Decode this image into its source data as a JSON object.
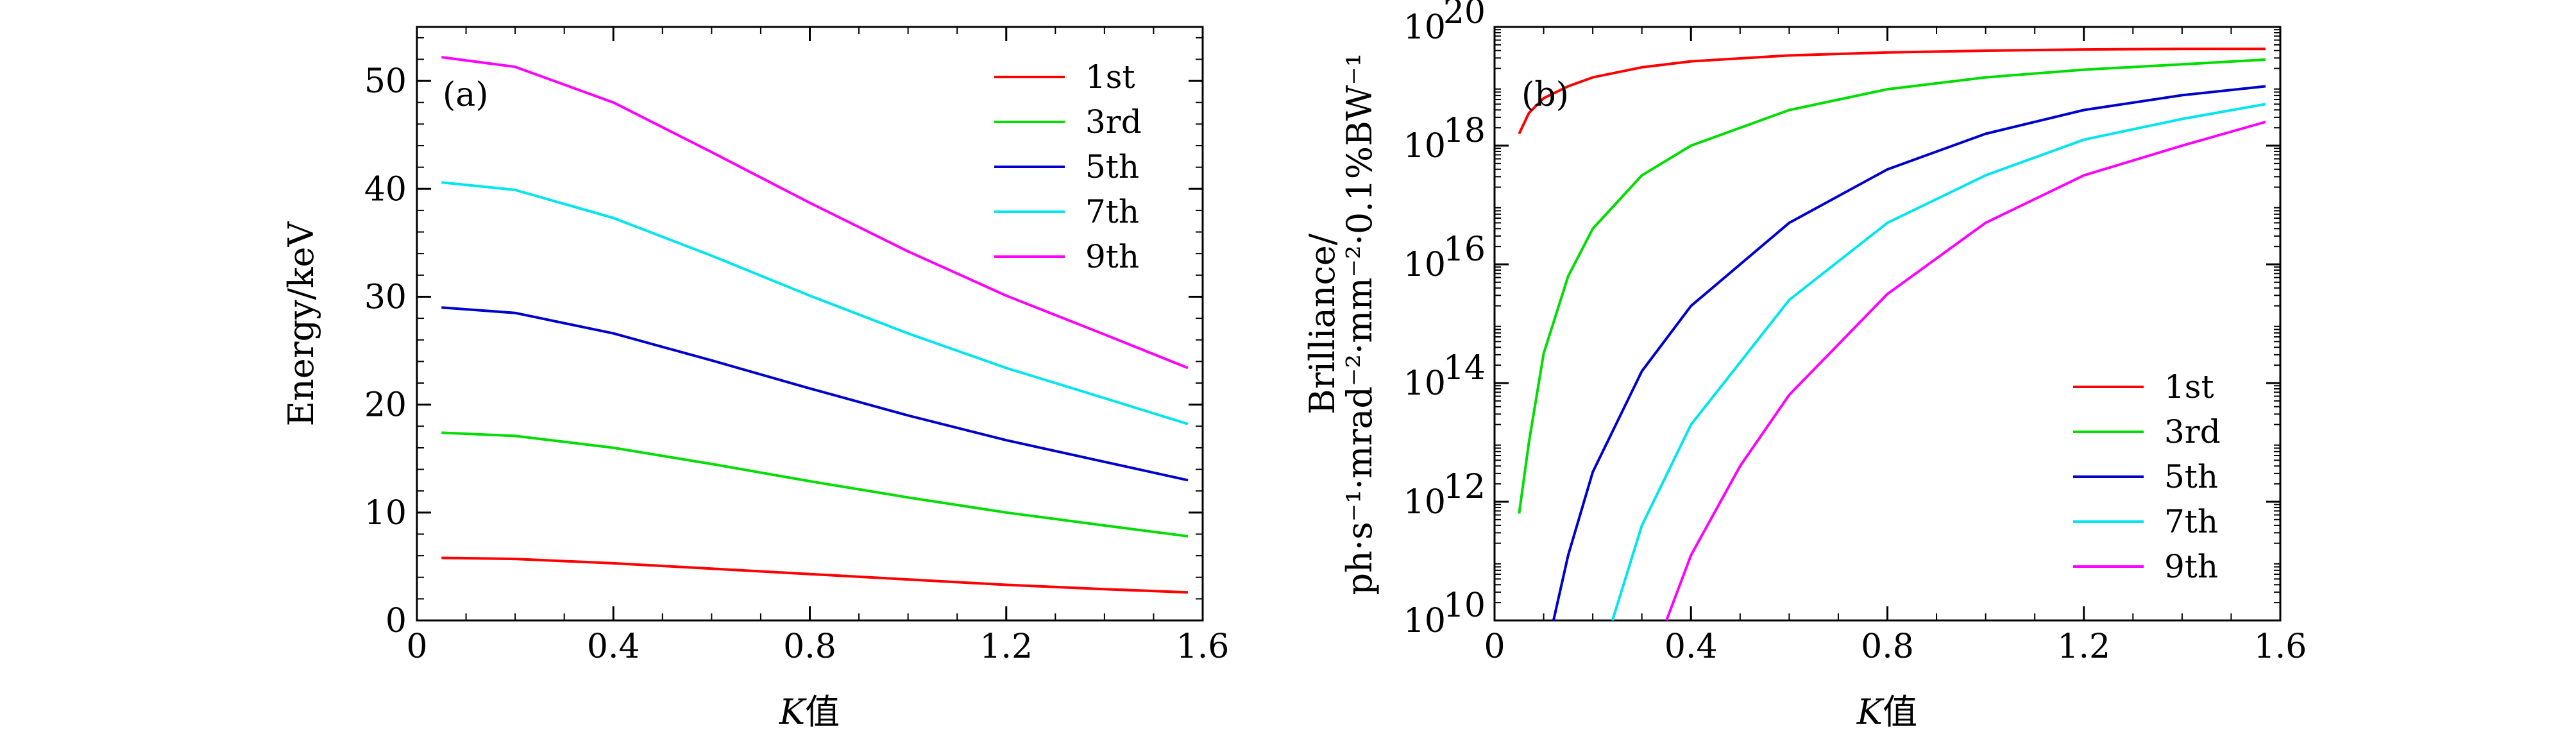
{
  "chart_data": [
    {
      "type": "line",
      "panel_label": "(a)",
      "xlabel_italic": "K",
      "xlabel_rest": "值",
      "ylabel": "Energy/keV",
      "xlim": [
        0,
        1.6
      ],
      "ylim": [
        0,
        55
      ],
      "xticks": [
        0,
        0.4,
        0.8,
        1.2,
        1.6
      ],
      "xtick_labels": [
        "0",
        "0.4",
        "0.8",
        "1.2",
        "1.6"
      ],
      "yticks": [
        0,
        10,
        20,
        30,
        40,
        50
      ],
      "ytick_labels": [
        "0",
        "10",
        "20",
        "30",
        "40",
        "50"
      ],
      "legend_position": "top-right",
      "x": [
        0.05,
        0.2,
        0.4,
        0.6,
        0.8,
        1.0,
        1.2,
        1.4,
        1.57
      ],
      "series": [
        {
          "name": "1st",
          "color": "#ff0000",
          "values": [
            5.8,
            5.7,
            5.3,
            4.8,
            4.3,
            3.8,
            3.3,
            2.9,
            2.6
          ]
        },
        {
          "name": "3rd",
          "color": "#00dd00",
          "values": [
            17.4,
            17.1,
            16.0,
            14.5,
            12.9,
            11.4,
            10.0,
            8.8,
            7.8
          ]
        },
        {
          "name": "5th",
          "color": "#0000cc",
          "values": [
            29.0,
            28.5,
            26.6,
            24.1,
            21.5,
            19.0,
            16.7,
            14.7,
            13.0
          ]
        },
        {
          "name": "7th",
          "color": "#00e5ee",
          "values": [
            40.6,
            39.9,
            37.3,
            33.8,
            30.1,
            26.6,
            23.4,
            20.6,
            18.2
          ]
        },
        {
          "name": "9th",
          "color": "#ff00ff",
          "values": [
            52.2,
            51.3,
            48.0,
            43.4,
            38.7,
            34.2,
            30.1,
            26.5,
            23.4
          ]
        }
      ]
    },
    {
      "type": "line",
      "yscale": "log",
      "panel_label": "(b)",
      "xlabel_italic": "K",
      "xlabel_rest": "值",
      "ylabel_line1": "Brilliance/",
      "ylabel_line2": "ph·s⁻¹·mrad⁻²·mm⁻²·0.1%BW⁻¹",
      "xlim": [
        0,
        1.6
      ],
      "ylim_log10": [
        10,
        20
      ],
      "xticks": [
        0,
        0.4,
        0.8,
        1.2,
        1.6
      ],
      "xtick_labels": [
        "0",
        "0.4",
        "0.8",
        "1.2",
        "1.6"
      ],
      "yticks_log10": [
        10,
        12,
        14,
        16,
        18,
        20
      ],
      "ytick_base": "10",
      "ytick_exponents": [
        "10",
        "12",
        "14",
        "16",
        "18",
        "20"
      ],
      "legend_position": "bottom-right",
      "series": [
        {
          "name": "1st",
          "color": "#ff0000",
          "x": [
            0.05,
            0.07,
            0.1,
            0.15,
            0.2,
            0.3,
            0.4,
            0.6,
            0.8,
            1.0,
            1.2,
            1.4,
            1.57
          ],
          "log10_values": [
            18.2,
            18.55,
            18.8,
            19.0,
            19.15,
            19.32,
            19.42,
            19.52,
            19.57,
            19.6,
            19.62,
            19.63,
            19.63
          ]
        },
        {
          "name": "3rd",
          "color": "#00dd00",
          "x": [
            0.05,
            0.07,
            0.1,
            0.15,
            0.2,
            0.3,
            0.4,
            0.6,
            0.8,
            1.0,
            1.2,
            1.4,
            1.57
          ],
          "log10_values": [
            11.8,
            13.0,
            14.5,
            15.8,
            16.6,
            17.5,
            18.0,
            18.6,
            18.95,
            19.15,
            19.28,
            19.37,
            19.45
          ]
        },
        {
          "name": "5th",
          "color": "#0000cc",
          "x": [
            0.12,
            0.15,
            0.2,
            0.3,
            0.4,
            0.6,
            0.8,
            1.0,
            1.2,
            1.4,
            1.57
          ],
          "log10_values": [
            10.0,
            11.1,
            12.5,
            14.2,
            15.3,
            16.7,
            17.6,
            18.2,
            18.6,
            18.85,
            19.0
          ]
        },
        {
          "name": "7th",
          "color": "#00e5ee",
          "x": [
            0.24,
            0.3,
            0.4,
            0.6,
            0.8,
            1.0,
            1.2,
            1.4,
            1.57
          ],
          "log10_values": [
            10.0,
            11.6,
            13.3,
            15.4,
            16.7,
            17.5,
            18.1,
            18.45,
            18.7
          ]
        },
        {
          "name": "9th",
          "color": "#ff00ff",
          "x": [
            0.35,
            0.4,
            0.5,
            0.6,
            0.8,
            1.0,
            1.2,
            1.4,
            1.57
          ],
          "log10_values": [
            10.0,
            11.1,
            12.6,
            13.8,
            15.5,
            16.7,
            17.5,
            18.0,
            18.4
          ]
        }
      ]
    }
  ]
}
